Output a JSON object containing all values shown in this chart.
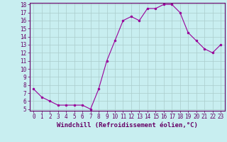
{
  "x": [
    0,
    1,
    2,
    3,
    4,
    5,
    6,
    7,
    8,
    9,
    10,
    11,
    12,
    13,
    14,
    15,
    16,
    17,
    18,
    19,
    20,
    21,
    22,
    23
  ],
  "y": [
    7.5,
    6.5,
    6.0,
    5.5,
    5.5,
    5.5,
    5.5,
    5.0,
    7.5,
    11.0,
    13.5,
    16.0,
    16.5,
    16.0,
    17.5,
    17.5,
    18.0,
    18.0,
    17.0,
    14.5,
    13.5,
    12.5,
    12.0,
    13.0
  ],
  "line_color": "#990099",
  "marker": "o",
  "marker_size": 2,
  "bg_color": "#c8eef0",
  "grid_color": "#aacccc",
  "xlabel": "Windchill (Refroidissement éolien,°C)",
  "ylim": [
    5,
    18
  ],
  "xlim": [
    -0.5,
    23.5
  ],
  "yticks": [
    5,
    6,
    7,
    8,
    9,
    10,
    11,
    12,
    13,
    14,
    15,
    16,
    17,
    18
  ],
  "xticks": [
    0,
    1,
    2,
    3,
    4,
    5,
    6,
    7,
    8,
    9,
    10,
    11,
    12,
    13,
    14,
    15,
    16,
    17,
    18,
    19,
    20,
    21,
    22,
    23
  ],
  "tick_fontsize": 5.5,
  "xlabel_fontsize": 6.5,
  "axis_color": "#660066",
  "spine_color": "#660066"
}
